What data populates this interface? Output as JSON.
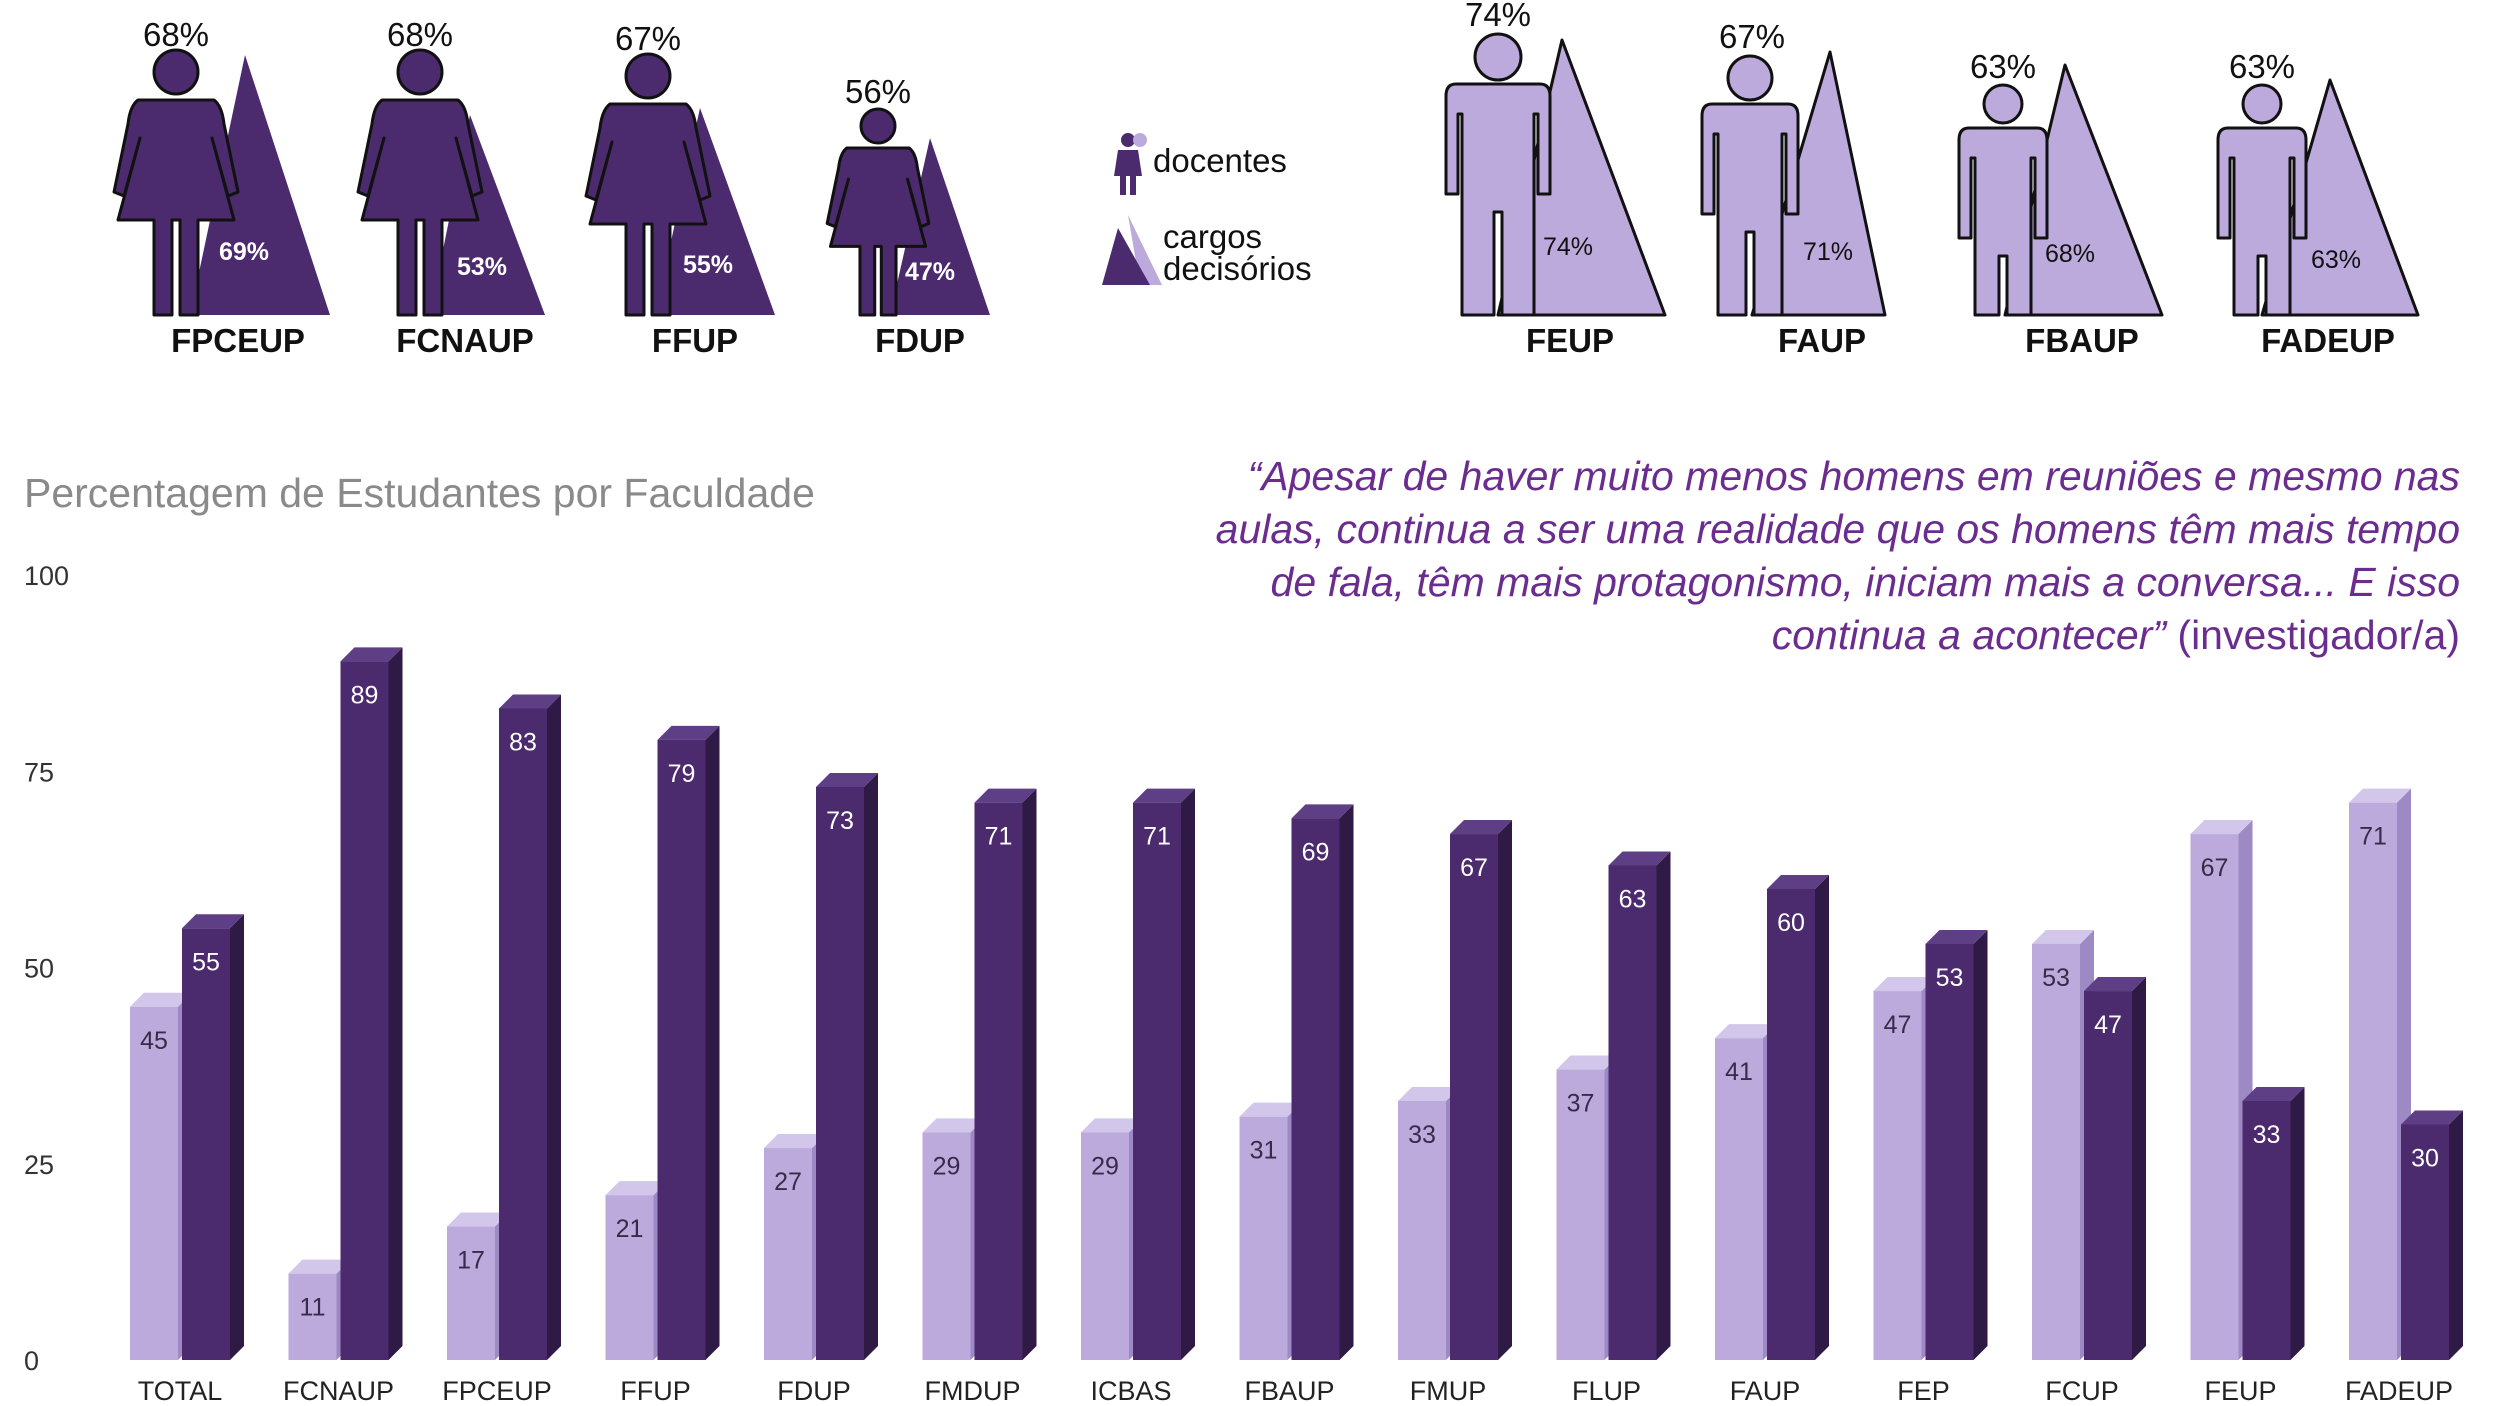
{
  "colors": {
    "women": "#4b2a6e",
    "women_dark": "#3a1f57",
    "men": "#bcaadc",
    "men_dark": "#a994cf",
    "label_light": "#ffffff",
    "label_dark": "#3a2a4a"
  },
  "legend": {
    "docentes_label": "docentes",
    "cargos_label_line1": "cargos",
    "cargos_label_line2": "decisórios",
    "docentes_icon": "person-icon",
    "cargos_icon": "triangle-icon"
  },
  "faculties_women": [
    {
      "name": "FPCEUP",
      "docentes": "68%",
      "cargos": "69%"
    },
    {
      "name": "FCNAUP",
      "docentes": "68%",
      "cargos": "53%"
    },
    {
      "name": "FFUP",
      "docentes": "67%",
      "cargos": "55%"
    },
    {
      "name": "FDUP",
      "docentes": "56%",
      "cargos": "47%"
    }
  ],
  "faculties_men": [
    {
      "name": "FEUP",
      "docentes": "74%",
      "cargos": "74%"
    },
    {
      "name": "FAUP",
      "docentes": "67%",
      "cargos": "71%"
    },
    {
      "name": "FBAUP",
      "docentes": "63%",
      "cargos": "68%"
    },
    {
      "name": "FADEUP",
      "docentes": "63%",
      "cargos": "63%"
    }
  ],
  "quote": {
    "text": "“Apesar de haver muito menos homens em reuniões e mesmo nas aulas, continua a ser uma realidade que os homens têm mais tempo de fala, têm mais protagonismo, iniciam mais a conversa... E isso continua a acontecer”",
    "source": " (investigador/a)"
  },
  "chart_data": {
    "type": "bar",
    "title": "Percentagem de Estudantes por Faculdade",
    "xlabel": "",
    "ylabel": "",
    "ylim": [
      0,
      100
    ],
    "yticks": [
      0,
      25,
      50,
      75,
      100
    ],
    "categories": [
      "TOTAL",
      "FCNAUP",
      "FPCEUP",
      "FFUP",
      "FDUP",
      "FMDUP",
      "ICBAS",
      "FBAUP",
      "FMUP",
      "FLUP",
      "FAUP",
      "FEP",
      "FCUP",
      "FEUP",
      "FADEUP"
    ],
    "series": [
      {
        "values": [
          45,
          11,
          17,
          21,
          27,
          29,
          29,
          31,
          33,
          37,
          41,
          47,
          53,
          67,
          71
        ]
      },
      {
        "values": [
          55,
          89,
          83,
          79,
          73,
          71,
          71,
          69,
          67,
          63,
          60,
          53,
          47,
          33,
          30
        ]
      }
    ],
    "grid": false,
    "legend": "none"
  }
}
